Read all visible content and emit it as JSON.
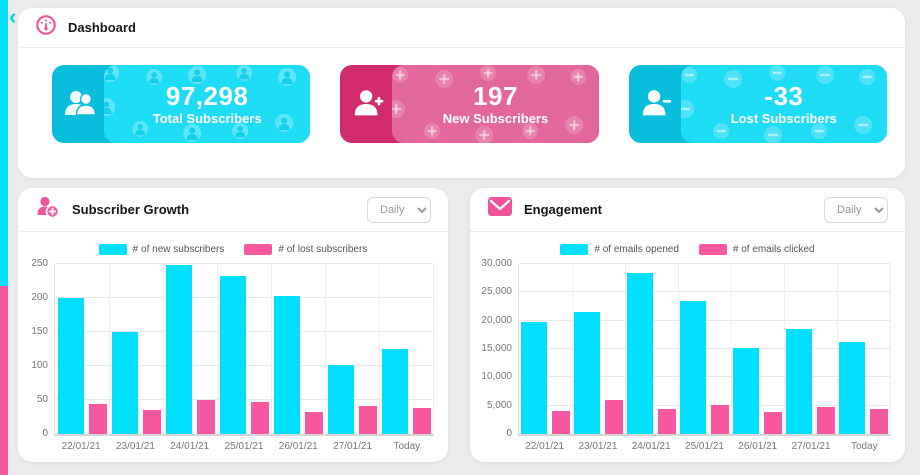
{
  "app": {
    "title": "Dashboard"
  },
  "sidebar": {
    "collapse_icon": "‹"
  },
  "colors": {
    "accent_cyan": "#00dffb",
    "accent_pink": "#f7589f",
    "card_cyan_dark": "#09bedc",
    "card_cyan_body": "#1fdcf5",
    "card_pink_dark": "#d22b6d",
    "card_pink_body": "#e2679c"
  },
  "stat_cards": [
    {
      "value": "97,298",
      "label": "Total Subscribers",
      "theme": "cyan",
      "icon": "users-icon"
    },
    {
      "value": "197",
      "label": "New Subscribers",
      "theme": "pink",
      "icon": "user-plus-icon"
    },
    {
      "value": "-33",
      "label": "Lost Subscribers",
      "theme": "cyan",
      "icon": "user-minus-icon"
    }
  ],
  "panels": [
    {
      "title": "Subscriber Growth",
      "icon": "user-plus-badge-icon",
      "dropdown_value": "Daily"
    },
    {
      "title": "Engagement",
      "icon": "envelope-icon",
      "dropdown_value": "Daily"
    }
  ],
  "chart_data": [
    {
      "type": "bar",
      "title": "Subscriber Growth",
      "categories": [
        "22/01/21",
        "23/01/21",
        "24/01/21",
        "25/01/21",
        "26/01/21",
        "27/01/21",
        "Today"
      ],
      "series": [
        {
          "name": "# of new subscribers",
          "color": "#00dffb",
          "values": [
            200,
            150,
            248,
            232,
            203,
            102,
            125
          ]
        },
        {
          "name": "# of lost subscribers",
          "color": "#f7589f",
          "values": [
            44,
            35,
            50,
            47,
            32,
            41,
            38
          ]
        }
      ],
      "ylim": [
        0,
        250
      ],
      "ytick_step": 50,
      "ytick_format": "plain",
      "ylabel_width": 36,
      "grid": true,
      "legend_position": "top"
    },
    {
      "type": "bar",
      "title": "Engagement",
      "categories": [
        "22/01/21",
        "23/01/21",
        "24/01/21",
        "25/01/21",
        "26/01/21",
        "27/01/21",
        "Today"
      ],
      "series": [
        {
          "name": "# of emails opened",
          "color": "#00dffb",
          "values": [
            19800,
            21500,
            28500,
            23400,
            15200,
            18500,
            16300
          ]
        },
        {
          "name": "# of emails clicked",
          "color": "#f7589f",
          "values": [
            4100,
            6000,
            4400,
            5200,
            3800,
            4800,
            4500
          ]
        }
      ],
      "ylim": [
        0,
        30000
      ],
      "ytick_step": 5000,
      "ytick_format": "comma",
      "ylabel_width": 48,
      "grid": true,
      "legend_position": "top"
    }
  ]
}
